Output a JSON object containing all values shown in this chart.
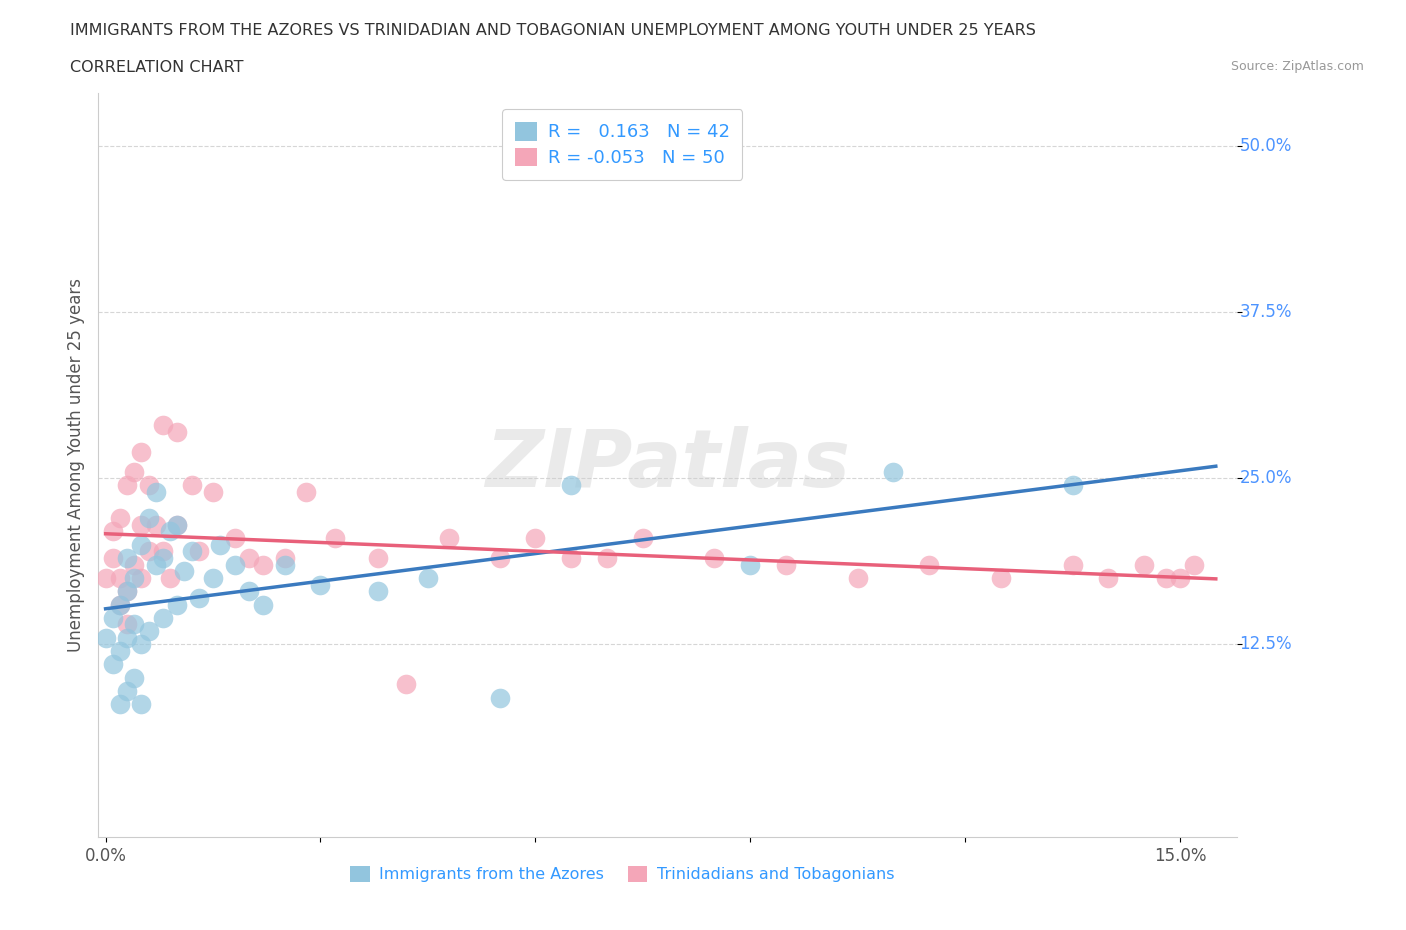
{
  "title_line1": "IMMIGRANTS FROM THE AZORES VS TRINIDADIAN AND TOBAGONIAN UNEMPLOYMENT AMONG YOUTH UNDER 25 YEARS",
  "title_line2": "CORRELATION CHART",
  "source": "Source: ZipAtlas.com",
  "ylabel": "Unemployment Among Youth under 25 years",
  "xlim": [
    -0.001,
    0.158
  ],
  "ylim": [
    -0.02,
    0.54
  ],
  "legend1_label": "R =   0.163   N = 42",
  "legend2_label": "R = -0.053   N = 50",
  "legend_series1": "Immigrants from the Azores",
  "legend_series2": "Trinidadians and Tobagonians",
  "color_blue": "#92c5de",
  "color_pink": "#f4a6b8",
  "color_blue_line": "#3a7abf",
  "color_pink_line": "#e8607a",
  "watermark": "ZIPatlas",
  "azores_x": [
    0.0,
    0.001,
    0.001,
    0.002,
    0.002,
    0.002,
    0.003,
    0.003,
    0.003,
    0.003,
    0.004,
    0.004,
    0.004,
    0.005,
    0.005,
    0.005,
    0.006,
    0.006,
    0.007,
    0.007,
    0.008,
    0.008,
    0.009,
    0.01,
    0.01,
    0.011,
    0.012,
    0.013,
    0.015,
    0.016,
    0.018,
    0.02,
    0.022,
    0.025,
    0.03,
    0.038,
    0.045,
    0.055,
    0.065,
    0.09,
    0.11,
    0.135
  ],
  "azores_y": [
    0.13,
    0.11,
    0.145,
    0.08,
    0.12,
    0.155,
    0.09,
    0.13,
    0.165,
    0.19,
    0.1,
    0.14,
    0.175,
    0.08,
    0.125,
    0.2,
    0.135,
    0.22,
    0.185,
    0.24,
    0.145,
    0.19,
    0.21,
    0.155,
    0.215,
    0.18,
    0.195,
    0.16,
    0.175,
    0.2,
    0.185,
    0.165,
    0.155,
    0.185,
    0.17,
    0.165,
    0.175,
    0.085,
    0.245,
    0.185,
    0.255,
    0.245
  ],
  "tt_x": [
    0.0,
    0.001,
    0.001,
    0.002,
    0.002,
    0.002,
    0.003,
    0.003,
    0.003,
    0.004,
    0.004,
    0.005,
    0.005,
    0.005,
    0.006,
    0.006,
    0.007,
    0.008,
    0.008,
    0.009,
    0.01,
    0.01,
    0.012,
    0.013,
    0.015,
    0.018,
    0.02,
    0.022,
    0.025,
    0.028,
    0.032,
    0.038,
    0.042,
    0.048,
    0.055,
    0.06,
    0.065,
    0.07,
    0.075,
    0.085,
    0.095,
    0.105,
    0.115,
    0.125,
    0.135,
    0.14,
    0.145,
    0.148,
    0.15,
    0.152
  ],
  "tt_y": [
    0.175,
    0.19,
    0.21,
    0.155,
    0.175,
    0.22,
    0.14,
    0.165,
    0.245,
    0.185,
    0.255,
    0.175,
    0.215,
    0.27,
    0.195,
    0.245,
    0.215,
    0.195,
    0.29,
    0.175,
    0.215,
    0.285,
    0.245,
    0.195,
    0.24,
    0.205,
    0.19,
    0.185,
    0.19,
    0.24,
    0.205,
    0.19,
    0.095,
    0.205,
    0.19,
    0.205,
    0.19,
    0.19,
    0.205,
    0.19,
    0.185,
    0.175,
    0.185,
    0.175,
    0.185,
    0.175,
    0.185,
    0.175,
    0.175,
    0.185
  ]
}
